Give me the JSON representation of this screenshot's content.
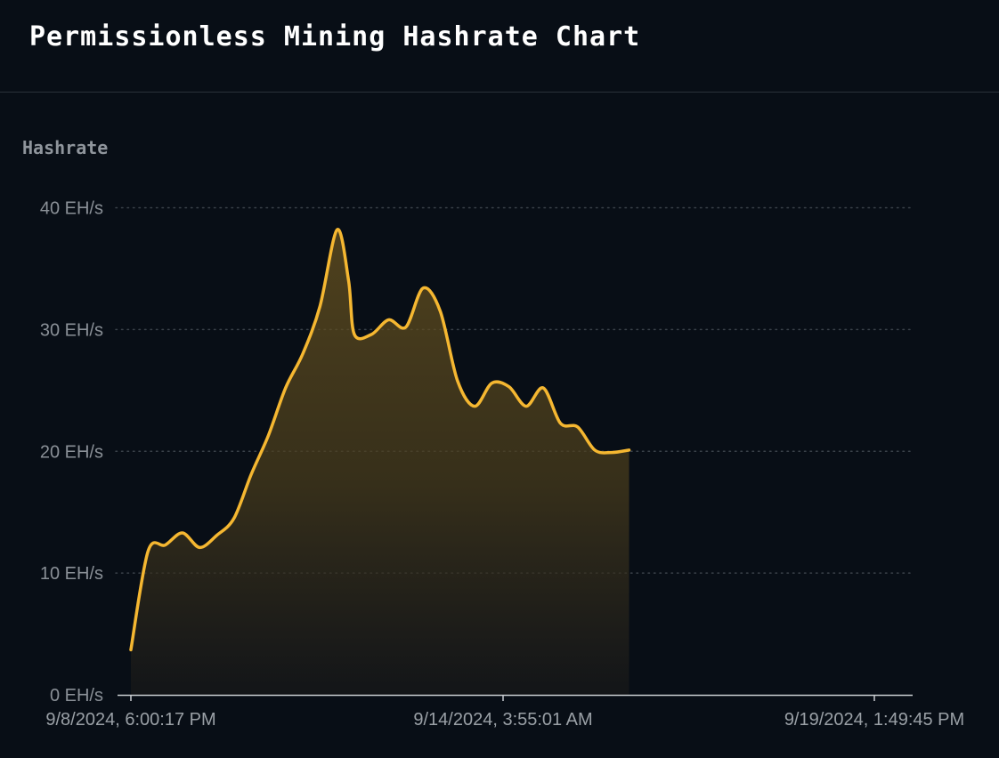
{
  "header": {
    "title": "Permissionless Mining Hashrate Chart"
  },
  "colors": {
    "background": "#080e16",
    "line": "#f5b731",
    "grid": "#3a4149",
    "axis": "#c8ccd0"
  },
  "chart_data": {
    "type": "area",
    "title": "",
    "ylabel": "Hashrate",
    "xlabel": "",
    "ylim": [
      0,
      40
    ],
    "y_ticks": [
      0,
      10,
      20,
      30,
      40
    ],
    "y_tick_labels": [
      "0 EH/s",
      "10 EH/s",
      "20 EH/s",
      "30 EH/s",
      "40 EH/s"
    ],
    "x_ticks": [
      "2024-09-08T18:00:17",
      "2024-09-14T03:55:01",
      "2024-09-19T13:49:45"
    ],
    "x_tick_labels": [
      "9/8/2024, 6:00:17 PM",
      "9/14/2024, 3:55:01 AM",
      "9/19/2024, 1:49:45 PM"
    ],
    "grid": "horizontal dotted",
    "series": [
      {
        "values": [
          {
            "x": "2024-09-08T18:00",
            "y": 3.7
          },
          {
            "x": "2024-09-09T00:00",
            "y": 11.8
          },
          {
            "x": "2024-09-09T06:00",
            "y": 12.3
          },
          {
            "x": "2024-09-09T12:00",
            "y": 13.3
          },
          {
            "x": "2024-09-09T18:00",
            "y": 12.1
          },
          {
            "x": "2024-09-10T00:00",
            "y": 13.1
          },
          {
            "x": "2024-09-10T06:00",
            "y": 14.5
          },
          {
            "x": "2024-09-10T12:00",
            "y": 18.1
          },
          {
            "x": "2024-09-10T18:00",
            "y": 21.3
          },
          {
            "x": "2024-09-11T00:00",
            "y": 25.2
          },
          {
            "x": "2024-09-11T06:00",
            "y": 28.0
          },
          {
            "x": "2024-09-11T12:00",
            "y": 31.9
          },
          {
            "x": "2024-09-11T18:00",
            "y": 38.2
          },
          {
            "x": "2024-09-11T22:00",
            "y": 34.0
          },
          {
            "x": "2024-09-12T00:00",
            "y": 29.6
          },
          {
            "x": "2024-09-12T06:00",
            "y": 29.6
          },
          {
            "x": "2024-09-12T12:00",
            "y": 30.8
          },
          {
            "x": "2024-09-12T18:00",
            "y": 30.2
          },
          {
            "x": "2024-09-13T00:00",
            "y": 33.4
          },
          {
            "x": "2024-09-13T06:00",
            "y": 31.5
          },
          {
            "x": "2024-09-13T12:00",
            "y": 25.8
          },
          {
            "x": "2024-09-13T18:00",
            "y": 23.7
          },
          {
            "x": "2024-09-14T00:00",
            "y": 25.6
          },
          {
            "x": "2024-09-14T06:00",
            "y": 25.3
          },
          {
            "x": "2024-09-14T12:00",
            "y": 23.7
          },
          {
            "x": "2024-09-14T18:00",
            "y": 25.2
          },
          {
            "x": "2024-09-15T00:00",
            "y": 22.3
          },
          {
            "x": "2024-09-15T06:00",
            "y": 22.0
          },
          {
            "x": "2024-09-15T12:00",
            "y": 20.1
          },
          {
            "x": "2024-09-15T18:00",
            "y": 19.9
          },
          {
            "x": "2024-09-16T00:00",
            "y": 20.1
          }
        ]
      }
    ]
  }
}
